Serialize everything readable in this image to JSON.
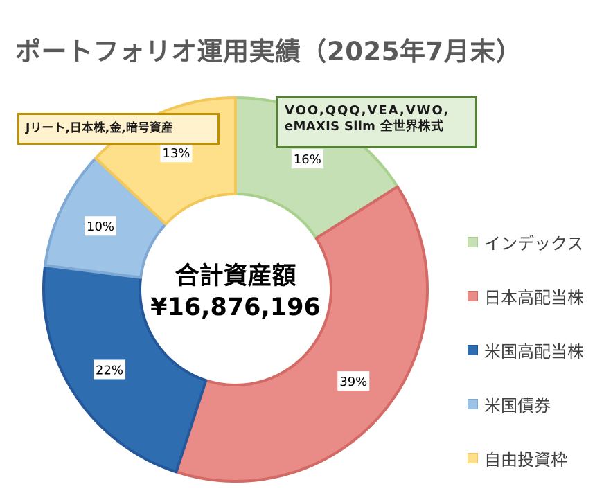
{
  "title": "ポートフォリオ運用実績（2025年7月末）",
  "center": {
    "label": "合計資産額",
    "value": "¥16,876,196"
  },
  "callouts": {
    "index_line1": "VOO,QQQ,VEA,VWO,",
    "index_line2": "eMAXIS Slim 全世界株式",
    "reit": "Jリート,日本株,金,暗号資産"
  },
  "chart_data": {
    "type": "pie",
    "subtype": "donut",
    "title": "ポートフォリオ運用実績（2025年7月末）",
    "legend_position": "right",
    "slices": [
      {
        "name": "インデックス",
        "value": 16,
        "label": "16%",
        "color": "#c5e0b4",
        "stroke": "#a9d18e"
      },
      {
        "name": "日本高配当株",
        "value": 39,
        "label": "39%",
        "color": "#e98b87",
        "stroke": "#d46a66"
      },
      {
        "name": "米国高配当株",
        "value": 22,
        "label": "22%",
        "color": "#2e6db0",
        "stroke": "#24589a"
      },
      {
        "name": "米国債券",
        "value": 10,
        "label": "10%",
        "color": "#9dc3e6",
        "stroke": "#7fa9d4"
      },
      {
        "name": "自由投資枠",
        "value": 13,
        "label": "13%",
        "color": "#ffe08a",
        "stroke": "#f2c85a"
      }
    ]
  }
}
